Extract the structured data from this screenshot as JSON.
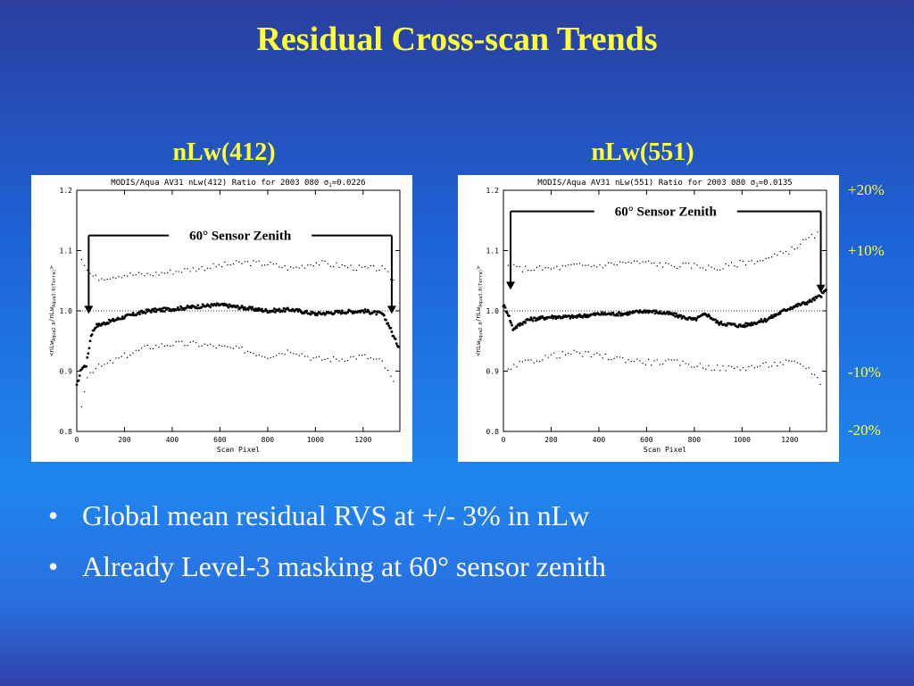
{
  "slide": {
    "title": "Residual Cross-scan Trends",
    "bullets": [
      "Global mean residual RVS at +/- 3% in nLw",
      "Already Level-3 masking at 60° sensor zenith"
    ],
    "bullet_marker": "•",
    "reference_labels": [
      "+20%",
      "+10%",
      "-10%",
      "-20%"
    ],
    "colors": {
      "background": "#1f86ee",
      "title": "#ffff33",
      "text": "#fbfbfb"
    }
  },
  "chart_data": [
    {
      "type": "scatter",
      "panel_title": "nLw(412)",
      "title": "MODIS/Aqua AV31 nLw(412) Ratio for 2003 080 σ",
      "sigma_subscript": "1",
      "sigma_value": "=0.0226",
      "xlabel": "Scan Pixel",
      "ylabel": "<nLw",
      "ylabel_sub1": "Aqua2.0",
      "ylabel_mid": "/nLw",
      "ylabel_sub2": "Aqua3.0(Terra)",
      "ylabel_end": ">",
      "xlim": [
        0,
        1354
      ],
      "ylim": [
        0.8,
        1.2
      ],
      "xticks": [
        0,
        200,
        400,
        600,
        800,
        1000,
        1200
      ],
      "yticks": [
        "0.8",
        "0.9",
        "1.0",
        "1.1",
        "1.2"
      ],
      "reference_line": 1.0,
      "annotation": "60° Sensor Zenith",
      "annotation_bracket_x": [
        50,
        1320
      ],
      "series": [
        {
          "values_x": [
            0,
            20,
            40,
            60,
            80,
            120,
            200,
            300,
            400,
            500,
            600,
            700,
            800,
            900,
            1000,
            1100,
            1200,
            1280,
            1310,
            1330,
            1350
          ],
          "values_y": [
            0.875,
            0.905,
            0.91,
            0.96,
            0.975,
            0.98,
            0.99,
            1.0,
            1.003,
            1.007,
            1.01,
            1.005,
            1.0,
            1.002,
            0.995,
            0.998,
            1.0,
            0.995,
            0.975,
            0.955,
            0.94
          ]
        },
        {
          "values_x": [
            20,
            40,
            60,
            80,
            100,
            200,
            300,
            400,
            500,
            600,
            700,
            800,
            900,
            1000,
            1100,
            1200,
            1280,
            1330
          ],
          "values_y": [
            1.09,
            1.07,
            1.06,
            1.055,
            1.055,
            1.06,
            1.06,
            1.065,
            1.07,
            1.075,
            1.08,
            1.078,
            1.07,
            1.08,
            1.075,
            1.07,
            1.07,
            1.05
          ]
        },
        {
          "values_x": [
            20,
            40,
            60,
            80,
            120,
            200,
            300,
            400,
            500,
            600,
            700,
            800,
            900,
            1000,
            1100,
            1200,
            1280,
            1330
          ],
          "values_y": [
            0.84,
            0.89,
            0.9,
            0.905,
            0.91,
            0.925,
            0.94,
            0.945,
            0.945,
            0.94,
            0.935,
            0.925,
            0.935,
            0.92,
            0.92,
            0.925,
            0.915,
            0.88
          ]
        }
      ]
    },
    {
      "type": "scatter",
      "panel_title": "nLw(551)",
      "title": "MODIS/Aqua AV31 nLw(551) Ratio for 2003 080 σ",
      "sigma_subscript": "1",
      "sigma_value": "=0.0135",
      "xlabel": "Scan Pixel",
      "ylabel": "<nLw",
      "ylabel_sub1": "Aqua2.0",
      "ylabel_mid": "/nLw",
      "ylabel_sub2": "Aqua3.0(Terra)",
      "ylabel_end": ">",
      "xlim": [
        0,
        1354
      ],
      "ylim": [
        0.8,
        1.2
      ],
      "xticks": [
        0,
        200,
        400,
        600,
        800,
        1000,
        1200
      ],
      "yticks": [
        "0.8",
        "0.9",
        "1.0",
        "1.1",
        "1.2"
      ],
      "reference_line": 1.0,
      "annotation": "60° Sensor Zenith",
      "annotation_bracket_x": [
        30,
        1330
      ],
      "series": [
        {
          "values_x": [
            0,
            20,
            40,
            60,
            100,
            200,
            300,
            400,
            500,
            600,
            700,
            800,
            850,
            900,
            1000,
            1100,
            1200,
            1280,
            1330,
            1354
          ],
          "values_y": [
            1.01,
            0.995,
            0.97,
            0.975,
            0.985,
            0.99,
            0.99,
            0.995,
            0.995,
            1.0,
            0.995,
            0.985,
            0.995,
            0.98,
            0.975,
            0.985,
            1.005,
            1.015,
            1.025,
            1.035
          ]
        },
        {
          "values_x": [
            20,
            60,
            100,
            200,
            300,
            400,
            500,
            600,
            700,
            800,
            900,
            1000,
            1100,
            1200,
            1280,
            1330
          ],
          "values_y": [
            1.075,
            1.07,
            1.07,
            1.07,
            1.075,
            1.075,
            1.08,
            1.08,
            1.075,
            1.075,
            1.07,
            1.08,
            1.085,
            1.1,
            1.12,
            1.13
          ]
        },
        {
          "values_x": [
            20,
            60,
            100,
            200,
            300,
            400,
            500,
            600,
            700,
            800,
            900,
            1000,
            1100,
            1200,
            1280,
            1330
          ],
          "values_y": [
            0.9,
            0.91,
            0.915,
            0.925,
            0.93,
            0.925,
            0.92,
            0.915,
            0.915,
            0.91,
            0.905,
            0.905,
            0.91,
            0.915,
            0.905,
            0.88
          ]
        }
      ]
    }
  ]
}
